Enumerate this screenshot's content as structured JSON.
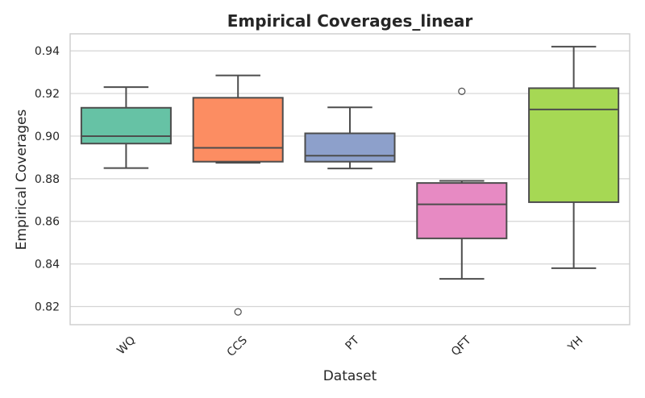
{
  "chart_data": {
    "type": "box",
    "title": "Empirical Coverages_linear",
    "xlabel": "Dataset",
    "ylabel": "Empirical Coverages",
    "categories": [
      "WQ",
      "CCS",
      "PT",
      "QFT",
      "YH"
    ],
    "boxes": [
      {
        "name": "WQ",
        "color": "#66c2a5",
        "whislo": 0.885,
        "q1": 0.8965,
        "med": 0.9,
        "q3": 0.9133,
        "whishi": 0.923,
        "fliers": []
      },
      {
        "name": "CCS",
        "color": "#fc8d62",
        "whislo": 0.8875,
        "q1": 0.888,
        "med": 0.8945,
        "q3": 0.918,
        "whishi": 0.9285,
        "fliers": [
          0.8175
        ]
      },
      {
        "name": "PT",
        "color": "#8da0cb",
        "whislo": 0.8848,
        "q1": 0.888,
        "med": 0.8908,
        "q3": 0.9013,
        "whishi": 0.9135,
        "fliers": []
      },
      {
        "name": "QFT",
        "color": "#e78ac3",
        "whislo": 0.833,
        "q1": 0.852,
        "med": 0.868,
        "q3": 0.878,
        "whishi": 0.879,
        "fliers": [
          0.921
        ]
      },
      {
        "name": "YH",
        "color": "#a6d854",
        "whislo": 0.838,
        "q1": 0.869,
        "med": 0.9125,
        "q3": 0.9225,
        "whishi": 0.942,
        "fliers": []
      }
    ],
    "yticks": [
      "0.82",
      "0.84",
      "0.86",
      "0.88",
      "0.90",
      "0.92",
      "0.94"
    ],
    "ylim": [
      0.8115,
      0.948
    ],
    "grid": "horizontal",
    "legend": "none"
  }
}
